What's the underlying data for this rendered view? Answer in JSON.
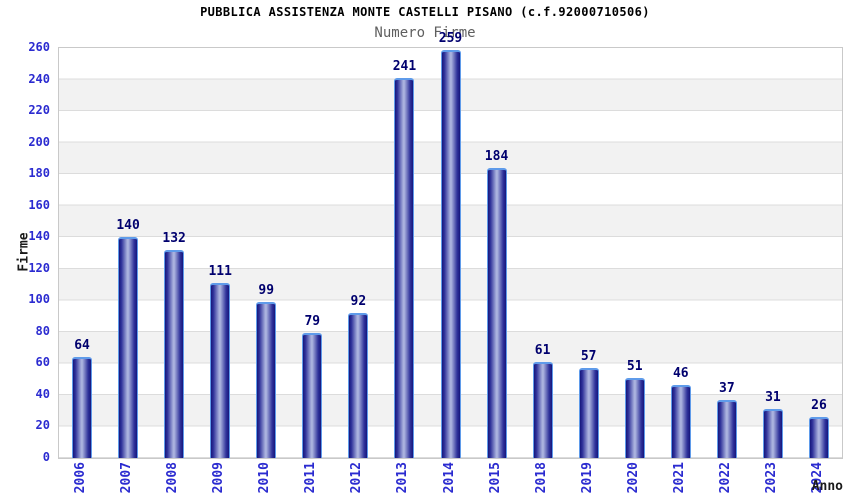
{
  "chart_data": {
    "type": "bar",
    "title": "PUBBLICA ASSISTENZA MONTE CASTELLI PISANO (c.f.92000710506)",
    "subtitle": "Numero Firme",
    "xlabel": "Anno",
    "ylabel": "Firme",
    "categories": [
      "2006",
      "2007",
      "2008",
      "2009",
      "2010",
      "2011",
      "2012",
      "2013",
      "2014",
      "2015",
      "2018",
      "2019",
      "2020",
      "2021",
      "2022",
      "2023",
      "2024"
    ],
    "values": [
      64,
      140,
      132,
      111,
      99,
      79,
      92,
      241,
      259,
      184,
      61,
      57,
      51,
      46,
      37,
      31,
      26
    ],
    "ylim": [
      0,
      260
    ],
    "ytick_step": 20,
    "grid": "horizontal-bands-every-20",
    "legend_position": "none",
    "colors": {
      "bar_edge": "#16167c",
      "bar_shade": "#30339b",
      "bar_mid_light": "#aab2de",
      "bar_outline": "#5f9bea",
      "tick_label": "#2b2bd0",
      "value_label": "#00006e",
      "band_gray": "#f2f2f2",
      "band_white": "#ffffff",
      "gridline": "#dcdcdc",
      "plot_border": "#c9c9c9",
      "title_color": "#000000",
      "subtitle_color": "#5f5f5f",
      "axis_title_color": "#1a1a1a"
    }
  }
}
